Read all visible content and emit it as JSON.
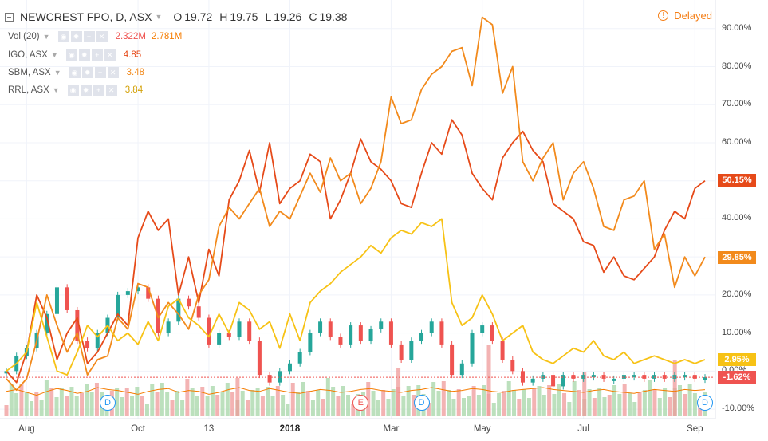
{
  "header": {
    "title": "NEWCREST FPO, D, ASX",
    "ohlc": [
      {
        "k": "O",
        "v": "19.72"
      },
      {
        "k": "H",
        "v": "19.75"
      },
      {
        "k": "L",
        "v": "19.26"
      },
      {
        "k": "C",
        "v": "19.38"
      }
    ],
    "delayed_label": "Delayed"
  },
  "legend": [
    {
      "name": "Vol (20)",
      "values": [
        "2.322M",
        "2.781M"
      ],
      "colors": [
        "#ef5350",
        "#f57c00"
      ]
    },
    {
      "name": "IGO, ASX",
      "values": [
        "4.85"
      ],
      "colors": [
        "#e64a19"
      ]
    },
    {
      "name": "SBM, ASX",
      "values": [
        "3.48"
      ],
      "colors": [
        "#f28a1c"
      ]
    },
    {
      "name": "RRL, ASX",
      "values": [
        "3.84"
      ],
      "colors": [
        "#f7c215"
      ]
    }
  ],
  "price_tags": [
    {
      "label": "50.15%",
      "color": "#e64a19",
      "value": 50.15
    },
    {
      "label": "29.85%",
      "color": "#f28a1c",
      "value": 29.85
    },
    {
      "label": "2.95%",
      "color": "#f7c215",
      "value": 2.95
    },
    {
      "label": "-1.62%",
      "color": "#ef5350",
      "value": -1.62
    }
  ],
  "events": [
    {
      "letter": "D",
      "color": "#2196f3",
      "date_index": 10
    },
    {
      "letter": "E",
      "color": "#ef5350",
      "date_index": 35
    },
    {
      "letter": "D",
      "color": "#2196f3",
      "date_index": 41
    },
    {
      "letter": "D",
      "color": "#2196f3",
      "date_index": 69
    }
  ],
  "chart_data": {
    "type": "line",
    "x_labels": [
      "Aug",
      "Oct",
      "13",
      "2018",
      "Mar",
      "May",
      "Jul",
      "Sep"
    ],
    "x_label_index": [
      2,
      13,
      20,
      28,
      38,
      47,
      57,
      68
    ],
    "x_bold_index": 3,
    "y_ticks": [
      "90.00%",
      "80.00%",
      "70.00%",
      "60.00%",
      "50.00%",
      "40.00%",
      "30.00%",
      "20.00%",
      "10.00%",
      "0.00%",
      "-10.00%"
    ],
    "y_tick_values": [
      90,
      80,
      70,
      60,
      50,
      40,
      30,
      20,
      10,
      0,
      -10
    ],
    "ylim": [
      -12.5,
      97.5
    ],
    "grid": true,
    "series": [
      {
        "name": "IGO, ASX",
        "color": "#e64a19",
        "values": [
          0,
          -3,
          5,
          20,
          14,
          3,
          10,
          14,
          2,
          5,
          10,
          15,
          12,
          35,
          42,
          37,
          40,
          20,
          30,
          18,
          32,
          25,
          45,
          50,
          58,
          47,
          60,
          44,
          48,
          50,
          57,
          55,
          40,
          45,
          52,
          61,
          55,
          53,
          50,
          44,
          43,
          52,
          60,
          57,
          66,
          62,
          52,
          48,
          45,
          56,
          60,
          63,
          58,
          55,
          44,
          42,
          40,
          34,
          33,
          26,
          30,
          25,
          24,
          27,
          30,
          37,
          42,
          40,
          48,
          50
        ]
      },
      {
        "name": "SBM, ASX",
        "color": "#f28a1c",
        "values": [
          -2,
          -5,
          -2,
          8,
          20,
          12,
          5,
          10,
          -1,
          3,
          4,
          14,
          11,
          23,
          22,
          14,
          18,
          15,
          11,
          20,
          24,
          38,
          43,
          40,
          44,
          48,
          38,
          42,
          40,
          46,
          52,
          47,
          56,
          50,
          52,
          44,
          48,
          55,
          72,
          65,
          66,
          74,
          78,
          80,
          84,
          85,
          75,
          93,
          91,
          73,
          80,
          55,
          50,
          56,
          60,
          45,
          52,
          55,
          48,
          38,
          37,
          45,
          46,
          50,
          32,
          36,
          22,
          30,
          25,
          30
        ]
      },
      {
        "name": "RRL, ASX",
        "color": "#f7c215",
        "values": [
          0,
          2,
          5,
          18,
          9,
          0,
          -1,
          5,
          12,
          9,
          12,
          8,
          10,
          7,
          13,
          8,
          17,
          19,
          14,
          12,
          9,
          15,
          10,
          18,
          16,
          11,
          13,
          6,
          15,
          8,
          18,
          21,
          23,
          26,
          28,
          30,
          33,
          31,
          35,
          37,
          36,
          39,
          38,
          40,
          18,
          12,
          14,
          20,
          15,
          8,
          10,
          12,
          5,
          3,
          2,
          4,
          6,
          5,
          8,
          4,
          3,
          5,
          2,
          3,
          4,
          3,
          2,
          3,
          2,
          3
        ]
      },
      {
        "name": "NEWCREST FPO, D, ASX",
        "color": "#26a69a",
        "values": [
          0,
          4,
          6,
          10,
          15,
          22,
          16,
          8,
          6,
          10,
          14,
          20,
          21,
          22,
          19,
          10,
          13,
          19,
          17,
          14,
          7,
          10,
          9,
          13,
          8,
          -1,
          -3,
          0,
          2,
          5,
          10,
          13,
          9,
          7,
          12,
          8,
          11,
          13,
          7,
          3,
          8,
          10,
          13,
          7,
          -1,
          2,
          10,
          12,
          8,
          3,
          0,
          -3,
          -2,
          -1,
          -4,
          -1,
          -2,
          -1,
          -1,
          -2,
          -2,
          -1,
          -1,
          -2,
          -1,
          -2,
          -1,
          -1,
          -2,
          -1.62
        ]
      },
      {
        "name": "Vol (20)",
        "color": "#f57c00",
        "values": [
          2.6,
          2.8,
          2.5,
          2.2,
          2.6,
          2.9,
          2.7,
          2.4,
          2.6,
          3.0,
          2.8,
          2.7,
          2.5,
          2.3,
          2.6,
          2.8,
          2.9,
          2.5,
          2.7,
          2.6,
          2.3,
          2.5,
          2.8,
          3.0,
          2.7,
          2.6,
          2.9,
          2.7,
          2.5,
          2.4,
          2.6,
          2.8,
          2.7,
          2.5,
          2.6,
          2.8,
          2.9,
          2.7,
          2.6,
          2.5,
          2.7,
          2.8,
          3.0,
          2.8,
          2.6,
          2.7,
          2.9,
          2.8,
          2.6,
          2.5,
          2.7,
          2.8,
          2.9,
          3.0,
          2.8,
          2.7,
          2.6,
          2.5,
          2.7,
          2.8,
          2.6,
          2.5,
          2.4,
          2.6,
          2.8,
          2.7,
          2.6,
          2.8,
          2.7,
          2.781
        ]
      }
    ]
  }
}
